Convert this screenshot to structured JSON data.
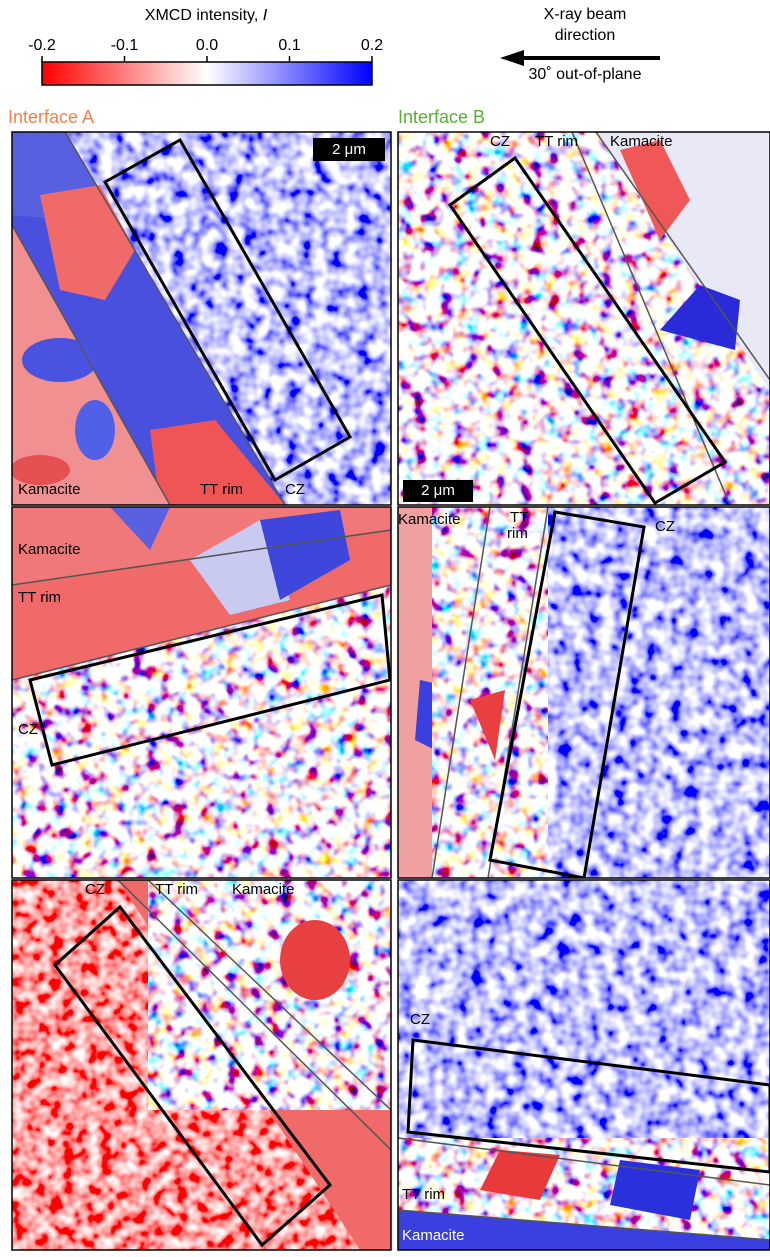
{
  "colorbar": {
    "title": "XMCD intensity, ",
    "symbol": "I",
    "lim": [
      -0.2,
      0.2
    ],
    "ticks": [
      -0.2,
      -0.1,
      {
        "value": 0,
        "label": "0.0"
      },
      0.1,
      0.2
    ]
  },
  "beam": {
    "line1": "X-ray beam",
    "line2": "direction",
    "angle": "30˚ out-of-plane"
  },
  "columns": [
    {
      "title": "Interface A"
    },
    {
      "title": "Interface B"
    }
  ],
  "panels": [
    {
      "labels": [
        "Kamacite",
        "TT rim",
        "CZ"
      ],
      "scale_bar": "2 μm"
    },
    {
      "labels": [
        "CZ",
        "TT rim",
        "Kamacite"
      ],
      "scale_bar": "2 μm"
    },
    {
      "labels": [
        "Kamacite",
        "TT rim",
        "CZ"
      ]
    },
    {
      "labels": [
        "Kamacite",
        "TT",
        "rim",
        "CZ"
      ]
    },
    {
      "labels": [
        "CZ",
        "TT rim",
        "Kamacite"
      ]
    },
    {
      "labels": [
        "CZ",
        "TT rim",
        "Kamacite"
      ]
    }
  ]
}
